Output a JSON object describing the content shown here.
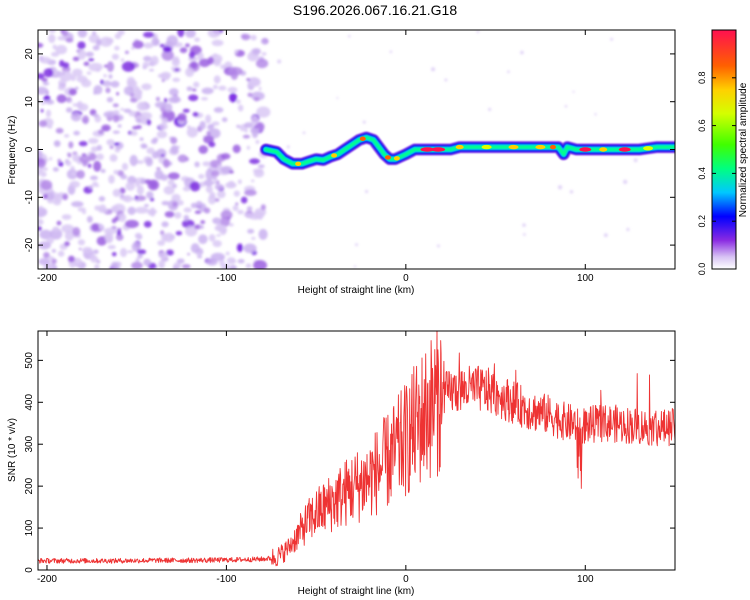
{
  "chart_data": [
    {
      "type": "heatmap",
      "title": "S196.2026.067.16.21.G18",
      "xlabel": "Height of straight line (km)",
      "ylabel": "Frequency (Hz)",
      "xlim": [
        -205,
        150
      ],
      "ylim": [
        -25,
        25
      ],
      "xticks": [
        -200,
        -100,
        0,
        100
      ],
      "yticks": [
        -20,
        -10,
        0,
        10,
        20
      ],
      "noise_region_end_km": -78,
      "trace": {
        "x": [
          -78,
          -72,
          -68,
          -63,
          -58,
          -54,
          -50,
          -46,
          -42,
          -38,
          -34,
          -30,
          -26,
          -22,
          -18,
          -15,
          -12,
          -9,
          -6,
          -3,
          0,
          5,
          10,
          15,
          20,
          25,
          30,
          40,
          50,
          60,
          70,
          80,
          85,
          88,
          90,
          95,
          100,
          110,
          120,
          130,
          140,
          150
        ],
        "frequency_hz": [
          0,
          -0.5,
          -2,
          -3,
          -3,
          -2.5,
          -2,
          -2.2,
          -1.5,
          -1,
          0,
          1,
          2,
          2.5,
          2,
          0.5,
          -1,
          -2,
          -2,
          -1.5,
          -1,
          0,
          0,
          0,
          0,
          0,
          0.5,
          0.5,
          0.5,
          0.5,
          0.5,
          0.5,
          0.5,
          -1,
          0.5,
          0,
          0,
          0,
          0,
          0,
          0.5,
          0.5
        ]
      },
      "colorbar": {
        "label": "Normalized spectral amplitude",
        "range": [
          0.0,
          1.0
        ],
        "ticks": [
          "0.0",
          "0.2",
          "0.4",
          "0.6",
          "0.8"
        ]
      }
    },
    {
      "type": "line",
      "xlabel": "Height of straight line (km)",
      "ylabel": "SNR (10 * v/v)",
      "xlim": [
        -205,
        150
      ],
      "ylim": [
        0,
        570
      ],
      "xticks": [
        -200,
        -100,
        0,
        100
      ],
      "yticks": [
        0,
        100,
        200,
        300,
        400,
        500
      ],
      "color": "#ee3333",
      "series": [
        {
          "name": "SNR",
          "x": [
            -205,
            -180,
            -160,
            -140,
            -120,
            -100,
            -90,
            -80,
            -75,
            -70,
            -65,
            -60,
            -55,
            -50,
            -45,
            -40,
            -35,
            -30,
            -25,
            -20,
            -15,
            -10,
            -5,
            0,
            5,
            10,
            15,
            20,
            25,
            30,
            35,
            40,
            45,
            50,
            55,
            60,
            65,
            70,
            75,
            80,
            85,
            90,
            95,
            100,
            105,
            110,
            115,
            120,
            125,
            130,
            135,
            140,
            145,
            150
          ],
          "values": [
            22,
            22,
            22,
            23,
            23,
            24,
            25,
            26,
            28,
            35,
            55,
            85,
            115,
            135,
            150,
            165,
            180,
            195,
            205,
            220,
            240,
            260,
            285,
            310,
            340,
            370,
            395,
            415,
            425,
            430,
            432,
            432,
            428,
            420,
            410,
            400,
            390,
            380,
            375,
            370,
            360,
            352,
            348,
            345,
            348,
            350,
            350,
            347,
            345,
            343,
            340,
            338,
            340,
            342
          ]
        }
      ]
    }
  ]
}
